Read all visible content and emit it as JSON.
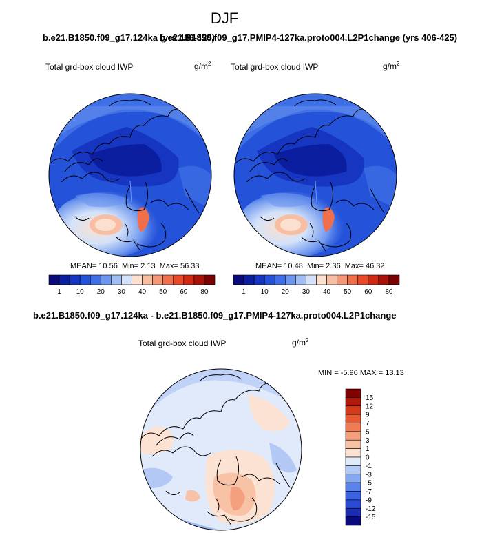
{
  "main_title": "DJF",
  "case_left": "b.e21.B1850.f09_g17.124ka (yrs 406-425)",
  "case_right": "b.e21.B1850.f09_g17.PMIP4-127ka.proto004.L2P1change (yrs 406-425)",
  "case_diff": "b.e21.B1850.f09_g17.124ka - b.e21.B1850.f09_g17.PMIP4-127ka.proto004.L2P1change",
  "chart_data": [
    {
      "type": "heatmap",
      "projection": "north-polar-stereographic",
      "title": "Total grd-box cloud IWP",
      "units_base": "g/m",
      "units_exp": "2",
      "stats": {
        "mean": "10.56",
        "min": "2.13",
        "max": "56.33"
      },
      "stats_labels": {
        "mean": "MEAN=",
        "min": "Min=",
        "max": "Max="
      },
      "colorbar_levels": [
        1,
        5,
        10,
        15,
        20,
        25,
        30,
        35,
        40,
        45,
        50,
        55,
        60,
        70,
        80
      ],
      "colorbar_tick_labels": [
        "1",
        "10",
        "20",
        "30",
        "40",
        "50",
        "60",
        "80"
      ],
      "colorbar_colors": [
        "#0a0a78",
        "#0c1ea0",
        "#1636c2",
        "#2452d8",
        "#3f6fe6",
        "#6d96ee",
        "#a0bdf4",
        "#d3e2fa",
        "#fbe0d0",
        "#f8bea4",
        "#f4987a",
        "#ef6e4c",
        "#e84a2a",
        "#d02a14",
        "#a81208",
        "#7a0202"
      ]
    },
    {
      "type": "heatmap",
      "projection": "north-polar-stereographic",
      "title": "Total grd-box cloud IWP",
      "units_base": "g/m",
      "units_exp": "2",
      "stats": {
        "mean": "10.48",
        "min": "2.36",
        "max": "46.32"
      },
      "stats_labels": {
        "mean": "MEAN=",
        "min": "Min=",
        "max": "Max="
      },
      "colorbar_levels": [
        1,
        5,
        10,
        15,
        20,
        25,
        30,
        35,
        40,
        45,
        50,
        55,
        60,
        70,
        80
      ],
      "colorbar_tick_labels": [
        "1",
        "10",
        "20",
        "30",
        "40",
        "50",
        "60",
        "80"
      ],
      "colorbar_colors": [
        "#0a0a78",
        "#0c1ea0",
        "#1636c2",
        "#2452d8",
        "#3f6fe6",
        "#6d96ee",
        "#a0bdf4",
        "#d3e2fa",
        "#fbe0d0",
        "#f8bea4",
        "#f4987a",
        "#ef6e4c",
        "#e84a2a",
        "#d02a14",
        "#a81208",
        "#7a0202"
      ]
    },
    {
      "type": "heatmap",
      "projection": "north-polar-stereographic",
      "title": "Total grd-box cloud IWP",
      "units_base": "g/m",
      "units_exp": "2",
      "minmax": {
        "min": "-5.96",
        "max": "13.13"
      },
      "minmax_labels": {
        "min": "MIN =",
        "max": "MAX ="
      },
      "colorbar_levels": [
        -15,
        -12,
        -9,
        -7,
        -5,
        -3,
        -1,
        0,
        1,
        3,
        5,
        7,
        9,
        12,
        15
      ],
      "colorbar_tick_labels": [
        "15",
        "12",
        "9",
        "7",
        "5",
        "3",
        "1",
        "0",
        "-1",
        "-3",
        "-5",
        "-7",
        "-9",
        "-12",
        "-15"
      ],
      "colorbar_colors": [
        "#0a0a7e",
        "#1a2cb2",
        "#2a4ad2",
        "#3a64e2",
        "#5a84ea",
        "#86a8f0",
        "#b4c8f6",
        "#e0eafa",
        "#fbe2d2",
        "#f8c2a6",
        "#f4a07e",
        "#f07c56",
        "#e85a32",
        "#d23a1a",
        "#b0180a",
        "#7e0202"
      ]
    }
  ]
}
